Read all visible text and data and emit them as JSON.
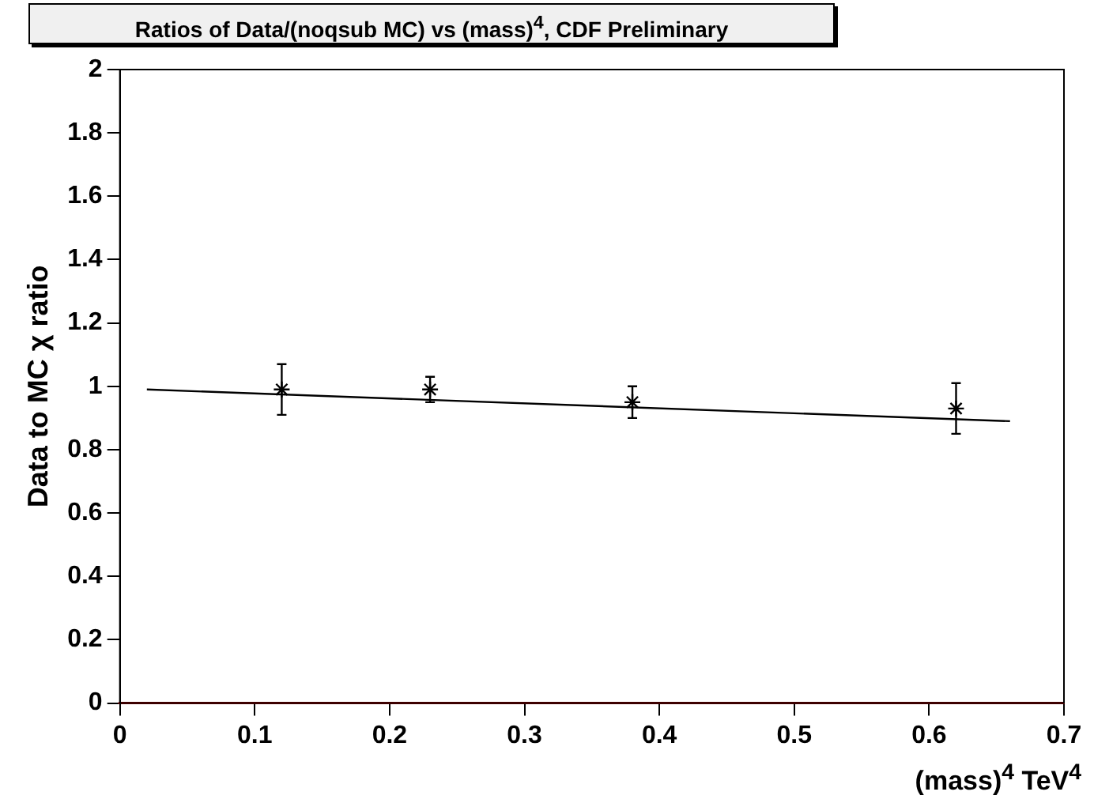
{
  "chart_data": {
    "type": "scatter",
    "title": "Ratios of Data/(noqsub MC) vs (mass)$^{4}$, CDF Preliminary",
    "xlabel": "(mass)$^{4}$ TeV$^{4}$",
    "ylabel": "Data to MC χ ratio",
    "xlim": [
      0,
      0.7
    ],
    "xticks": [
      0,
      0.1,
      0.2,
      0.3,
      0.4,
      0.5,
      0.6,
      0.7
    ],
    "ylim": [
      0,
      2
    ],
    "yticks": [
      0,
      0.2,
      0.4,
      0.6,
      0.8,
      1,
      1.2,
      1.4,
      1.6,
      1.8,
      2
    ],
    "grid": false,
    "legend": false,
    "marker": "cross",
    "series": [
      {
        "color": "#000000",
        "x": [
          0.12,
          0.23,
          0.38,
          0.62
        ],
        "values": [
          0.99,
          0.99,
          0.95,
          0.93
        ],
        "errors": [
          0.08,
          0.04,
          0.05,
          0.08
        ]
      },
      {
        "type": "line",
        "marker": "none",
        "color": "#000000",
        "x": [
          0.02,
          0.66
        ],
        "values": [
          0.99,
          0.89
        ]
      }
    ]
  }
}
